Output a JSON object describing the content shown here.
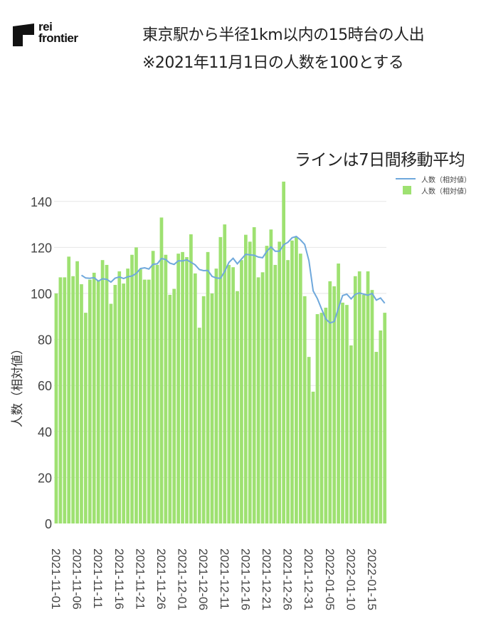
{
  "logo": {
    "line1": "rei",
    "line2": "frontier"
  },
  "header": {
    "title_line1": "東京駅から半径1km以内の15時台の人出",
    "title_line2": "※2021年11月1日の人数を100とする"
  },
  "chart_subtitle": "ラインは7日間移動平均",
  "legend": {
    "line_label": "人数（相対値）",
    "bar_label": "人数（相対値）"
  },
  "colors": {
    "bar": "#9ee171",
    "line": "#6fa8dc",
    "grid": "#e6e6e6",
    "text": "#444444"
  },
  "chart_data": {
    "type": "bar",
    "title": "東京駅から半径1km以内の15時台の人出",
    "subtitle": "ラインは7日間移動平均",
    "xlabel": "",
    "ylabel": "人数（相対値）",
    "ylim": [
      0,
      150
    ],
    "yticks": [
      0,
      20,
      40,
      60,
      80,
      100,
      120,
      140
    ],
    "grid": true,
    "legend_position": "top-right",
    "start_date": "2021-11-01",
    "x_tick_labels": [
      "2021-11-01",
      "2021-11-06",
      "2021-11-11",
      "2021-11-16",
      "2021-11-21",
      "2021-11-26",
      "2021-12-01",
      "2021-12-06",
      "2021-12-11",
      "2021-12-16",
      "2021-12-21",
      "2021-12-26",
      "2021-12-31",
      "2022-01-05",
      "2022-01-10",
      "2022-01-15"
    ],
    "series": [
      {
        "name": "人数（相対値）",
        "type": "bar",
        "values": [
          100,
          107,
          107,
          116,
          107.5,
          114,
          104,
          91.6,
          106,
          109,
          105.5,
          114.5,
          112.4,
          95.5,
          103.7,
          109.6,
          104.3,
          110.8,
          116.8,
          120,
          110.5,
          106,
          106,
          118.5,
          112.4,
          133,
          116.8,
          99.4,
          102,
          117.3,
          118,
          115.8,
          125.7,
          108.7,
          85.1,
          98.8,
          118,
          100,
          110.8,
          124.5,
          130,
          112.4,
          111.4,
          101,
          114.5,
          125.5,
          122.5,
          128.8,
          107,
          109.2,
          120.7,
          127.8,
          112.4,
          122.5,
          148.6,
          114.5,
          123,
          124.5,
          117.3,
          98.8,
          72.4,
          57.3,
          91,
          91.6,
          93.8,
          105.3,
          103.1,
          113,
          96,
          95,
          77.4,
          107.5,
          109.6,
          99.4,
          109.6,
          101.5,
          74.6,
          83.9,
          91.6
        ]
      },
      {
        "name": "人数（相対値）",
        "type": "line",
        "note": "7-day trailing moving average of bar series, starting at 7th day",
        "window": 7
      }
    ]
  }
}
